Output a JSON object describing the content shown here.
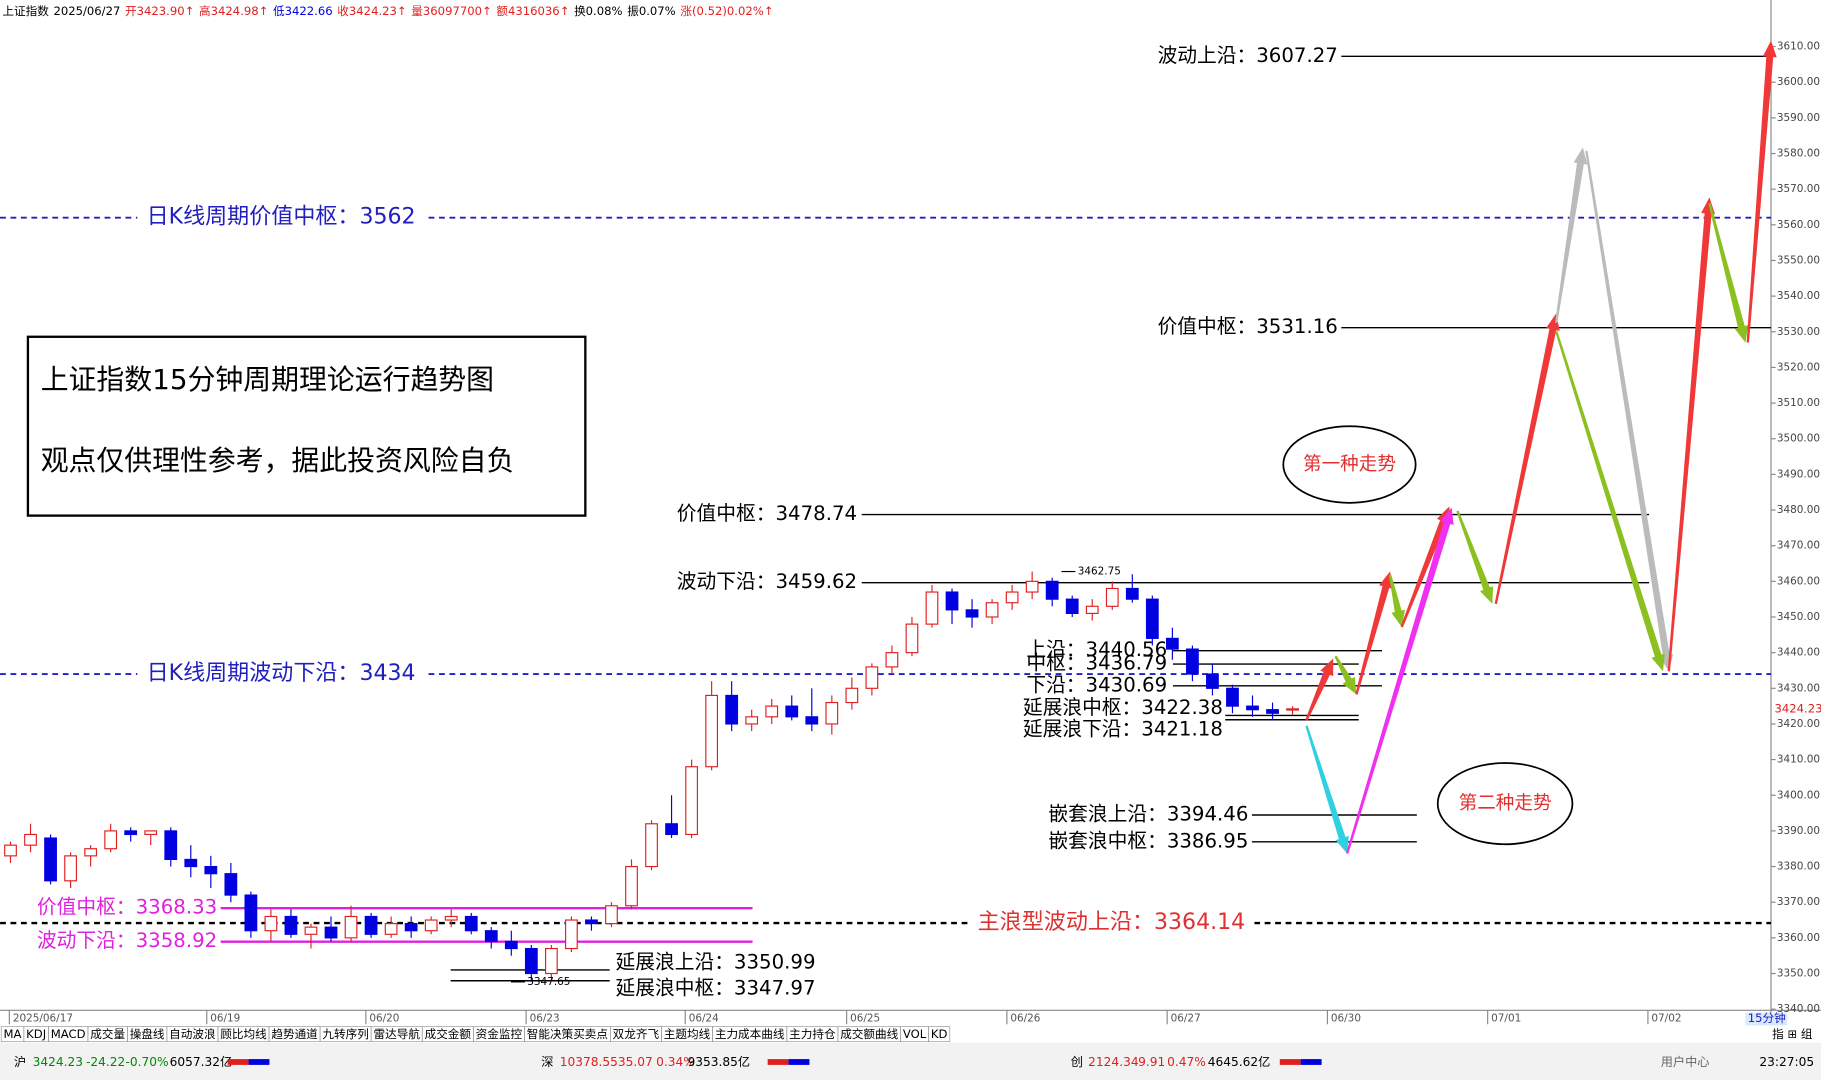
{
  "chart_data": {
    "type": "candlestick",
    "header": [
      "上证指数",
      "2025/06/27",
      "开3423.90↑",
      "高3424.98↑",
      "低3422.66",
      "收3424.23↑",
      "量36097700↑",
      "额4316036↑",
      "换0.08%",
      "振0.07%",
      "涨(0.52)0.02%↑"
    ],
    "up_color": "#e02020",
    "down_color": "#0000e0",
    "ylim": [
      3340,
      3616
    ],
    "yticks": [
      {
        "value": 3340,
        "label": "3340.00"
      },
      {
        "value": 3350,
        "label": "3350.00"
      },
      {
        "value": 3360,
        "label": "3360.00"
      },
      {
        "value": 3370,
        "label": "3370.00"
      },
      {
        "value": 3380,
        "label": "3380.00"
      },
      {
        "value": 3390,
        "label": "3390.00"
      },
      {
        "value": 3400,
        "label": "3400.00"
      },
      {
        "value": 3410,
        "label": "3410.00"
      },
      {
        "value": 3420,
        "label": "3420.00"
      },
      {
        "value": 3430,
        "label": "3430.00"
      },
      {
        "value": 3440,
        "label": "3440.00"
      },
      {
        "value": 3450,
        "label": "3450.00"
      },
      {
        "value": 3460,
        "label": "3460.00"
      },
      {
        "value": 3470,
        "label": "3470.00"
      },
      {
        "value": 3480,
        "label": "3480.00"
      },
      {
        "value": 3490,
        "label": "3490.00"
      },
      {
        "value": 3500,
        "label": "3500.00"
      },
      {
        "value": 3510,
        "label": "3510.00"
      },
      {
        "value": 3520,
        "label": "3520.00"
      },
      {
        "value": 3530,
        "label": "3530.00"
      },
      {
        "value": 3540,
        "label": "3540.00"
      },
      {
        "value": 3550,
        "label": "3550.00"
      },
      {
        "value": 3560,
        "label": "3560.00"
      },
      {
        "value": 3570,
        "label": "3570.00"
      },
      {
        "value": 3580,
        "label": "3580.00"
      },
      {
        "value": 3590,
        "label": "3590.00"
      },
      {
        "value": 3600,
        "label": "3600.00"
      },
      {
        "value": 3610,
        "label": "3610.00"
      }
    ],
    "last_price": 3424.23,
    "high_mark": 3462.75,
    "low_mark": 3347.65,
    "dates": [
      "2025/06/17",
      "06/19",
      "06/20",
      "06/23",
      "06/24",
      "06/25",
      "06/26",
      "06/27",
      "06/30",
      "07/01",
      "07/02"
    ],
    "period": "15分钟",
    "ohlc": [
      [
        3383,
        3387,
        3381,
        3386
      ],
      [
        3386,
        3392,
        3384,
        3389
      ],
      [
        3388,
        3389,
        3375,
        3376
      ],
      [
        3376,
        3384,
        3374,
        3383
      ],
      [
        3383,
        3386,
        3380,
        3385
      ],
      [
        3385,
        3392,
        3384,
        3390
      ],
      [
        3390,
        3391,
        3387,
        3389
      ],
      [
        3389,
        3390,
        3386,
        3390
      ],
      [
        3390,
        3391,
        3380,
        3382
      ],
      [
        3382,
        3386,
        3377,
        3380
      ],
      [
        3380,
        3383,
        3374,
        3378
      ],
      [
        3378,
        3381,
        3370,
        3372
      ],
      [
        3372,
        3373,
        3360,
        3362
      ],
      [
        3362,
        3368,
        3359,
        3366
      ],
      [
        3366,
        3368,
        3360,
        3361
      ],
      [
        3361,
        3364,
        3357,
        3363
      ],
      [
        3363,
        3366,
        3359,
        3360
      ],
      [
        3360,
        3369,
        3359,
        3366
      ],
      [
        3366,
        3367,
        3360,
        3361
      ],
      [
        3361,
        3366,
        3360,
        3364
      ],
      [
        3364,
        3366,
        3360,
        3362
      ],
      [
        3362,
        3366,
        3361,
        3365
      ],
      [
        3365,
        3368,
        3363,
        3366
      ],
      [
        3366,
        3367,
        3361,
        3362
      ],
      [
        3362,
        3363,
        3357,
        3359
      ],
      [
        3359,
        3362,
        3355,
        3357
      ],
      [
        3357,
        3358,
        3347.65,
        3350
      ],
      [
        3350,
        3358,
        3348,
        3357
      ],
      [
        3357,
        3366,
        3356,
        3365
      ],
      [
        3365,
        3366,
        3362,
        3364
      ],
      [
        3364,
        3370,
        3363,
        3369
      ],
      [
        3369,
        3382,
        3368,
        3380
      ],
      [
        3380,
        3393,
        3379,
        3392
      ],
      [
        3392,
        3400,
        3388,
        3389
      ],
      [
        3389,
        3410,
        3388,
        3408
      ],
      [
        3408,
        3432,
        3407,
        3428
      ],
      [
        3428,
        3432,
        3418,
        3420
      ],
      [
        3420,
        3424,
        3418,
        3422
      ],
      [
        3422,
        3427,
        3420,
        3425
      ],
      [
        3425,
        3428,
        3421,
        3422
      ],
      [
        3422,
        3430,
        3418,
        3420
      ],
      [
        3420,
        3428,
        3417,
        3426
      ],
      [
        3426,
        3433,
        3424,
        3430
      ],
      [
        3430,
        3437,
        3428,
        3436
      ],
      [
        3436,
        3442,
        3434,
        3440
      ],
      [
        3440,
        3450,
        3439,
        3448
      ],
      [
        3448,
        3459,
        3447,
        3457
      ],
      [
        3457,
        3458,
        3448,
        3452
      ],
      [
        3452,
        3455,
        3447,
        3450
      ],
      [
        3450,
        3455,
        3448,
        3454
      ],
      [
        3454,
        3459,
        3452,
        3457
      ],
      [
        3457,
        3462.75,
        3455,
        3460
      ],
      [
        3460,
        3461,
        3453,
        3455
      ],
      [
        3455,
        3456,
        3450,
        3451
      ],
      [
        3451,
        3455,
        3449,
        3453
      ],
      [
        3453,
        3460,
        3452,
        3458
      ],
      [
        3458,
        3462,
        3454,
        3455
      ],
      [
        3455,
        3456,
        3442,
        3444
      ],
      [
        3444,
        3447,
        3438,
        3441
      ],
      [
        3441,
        3442,
        3432,
        3434
      ],
      [
        3434,
        3437,
        3428,
        3430
      ],
      [
        3430,
        3431,
        3423,
        3425
      ],
      [
        3425,
        3428,
        3422,
        3424
      ],
      [
        3424,
        3426,
        3421,
        3423
      ],
      [
        3423.9,
        3424.98,
        3422.66,
        3424.23
      ]
    ],
    "levels": [
      {
        "label": "波动上沿：3607.27",
        "value": 3607.27,
        "color": "#000000"
      },
      {
        "label": "日K线周期价值中枢：3562",
        "value": 3562,
        "color": "#2020c0"
      },
      {
        "label": "价值中枢：3531.16",
        "value": 3531.16,
        "color": "#000000"
      },
      {
        "label": "价值中枢：3478.74",
        "value": 3478.74,
        "color": "#000000"
      },
      {
        "label": "波动下沿：3459.62",
        "value": 3459.62,
        "color": "#000000"
      },
      {
        "label": "日K线周期波动下沿：3434",
        "value": 3434,
        "color": "#2020c0"
      },
      {
        "label": "上沿：3440.56",
        "value": 3440.56,
        "color": "#000000"
      },
      {
        "label": "中枢：3436.79",
        "value": 3436.79,
        "color": "#000000"
      },
      {
        "label": "下沿：3430.69",
        "value": 3430.69,
        "color": "#000000"
      },
      {
        "label": "延展浪中枢：3422.38",
        "value": 3422.38,
        "color": "#000000"
      },
      {
        "label": "延展浪下沿：3421.18",
        "value": 3421.18,
        "color": "#000000"
      },
      {
        "label": "嵌套浪上沿：3394.46",
        "value": 3394.46,
        "color": "#000000"
      },
      {
        "label": "嵌套浪中枢：3386.95",
        "value": 3386.95,
        "color": "#000000"
      },
      {
        "label": "主浪型波动上沿：3364.14",
        "value": 3364.14,
        "color": "#000000"
      },
      {
        "label": "价值中枢：3368.33",
        "value": 3368.33,
        "color": "#e020e0"
      },
      {
        "label": "波动下沿：3358.92",
        "value": 3358.92,
        "color": "#e020e0"
      },
      {
        "label": "延展浪上沿：3350.99",
        "value": 3350.99,
        "color": "#000000"
      },
      {
        "label": "延展浪中枢：3347.97",
        "value": 3347.97,
        "color": "#000000"
      }
    ],
    "box_lines": [
      "上证指数15分钟周期理论运行趋势图",
      "观点仅供理性参考，据此投资风险自负"
    ],
    "ovals": [
      "第一种走势",
      "第二种走势"
    ],
    "tabs": [
      "MA",
      "KDJ",
      "MACD",
      "成交量",
      "操盘线",
      "自动波浪",
      "顾比均线",
      "趋势通道",
      "九转序列",
      "雷达导航",
      "成交金额",
      "资金监控",
      "智能决策买卖点",
      "双龙齐飞",
      "主题均线",
      "主力成本曲线",
      "主力持仓",
      "成交额曲线",
      "VOL",
      "KD"
    ],
    "side_tabs": "指 ⊞ 组",
    "status": [
      "沪",
      "3424.23",
      "-24.22",
      "-0.70%",
      "6057.32亿",
      "深",
      "10378.55",
      "35.07",
      "0.34%",
      "9353.85亿",
      "创",
      "2124.34",
      "9.91",
      "0.47%",
      "4645.62亿",
      "用户中心",
      "23:27:05"
    ]
  }
}
